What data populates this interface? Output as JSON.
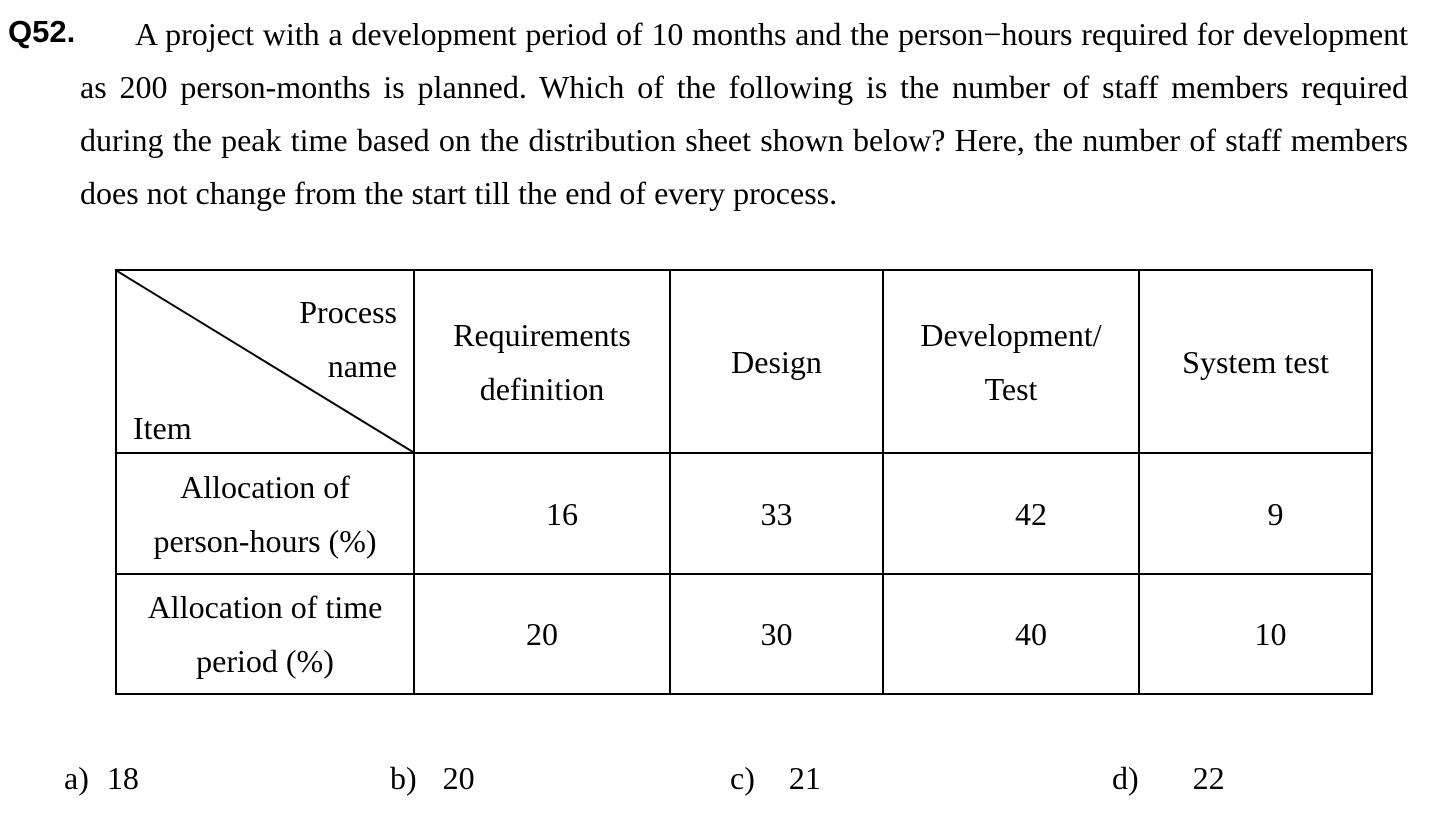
{
  "question": {
    "number": "Q52.",
    "text": "A project with a development period of 10 months and the person−hours required for development as 200 person-months is planned. Which of the following is the number of staff members required during the peak time based on the distribution sheet shown below? Here, the number of staff members does not change from the start till the end of every process."
  },
  "table": {
    "header_top_label": "Process name",
    "header_top_line1": "Process",
    "header_top_line2": "name",
    "header_bottom_label": "Item",
    "columns": [
      {
        "line1": "Requirements",
        "line2": "definition"
      },
      {
        "line1": "Design",
        "line2": ""
      },
      {
        "line1": "Development/",
        "line2": "Test"
      },
      {
        "line1": "System test",
        "line2": ""
      }
    ],
    "rows": [
      {
        "label_line1": "Allocation of",
        "label_line2": "person-hours (%)",
        "values": [
          "16",
          "33",
          "42",
          "9"
        ]
      },
      {
        "label_line1": "Allocation of time",
        "label_line2": "period (%)",
        "values": [
          "20",
          "30",
          "40",
          "10"
        ]
      }
    ]
  },
  "options": [
    {
      "label": "a)",
      "value": "18"
    },
    {
      "label": "b)",
      "value": "20"
    },
    {
      "label": "c)",
      "value": "21"
    },
    {
      "label": "d)",
      "value": "22"
    }
  ]
}
